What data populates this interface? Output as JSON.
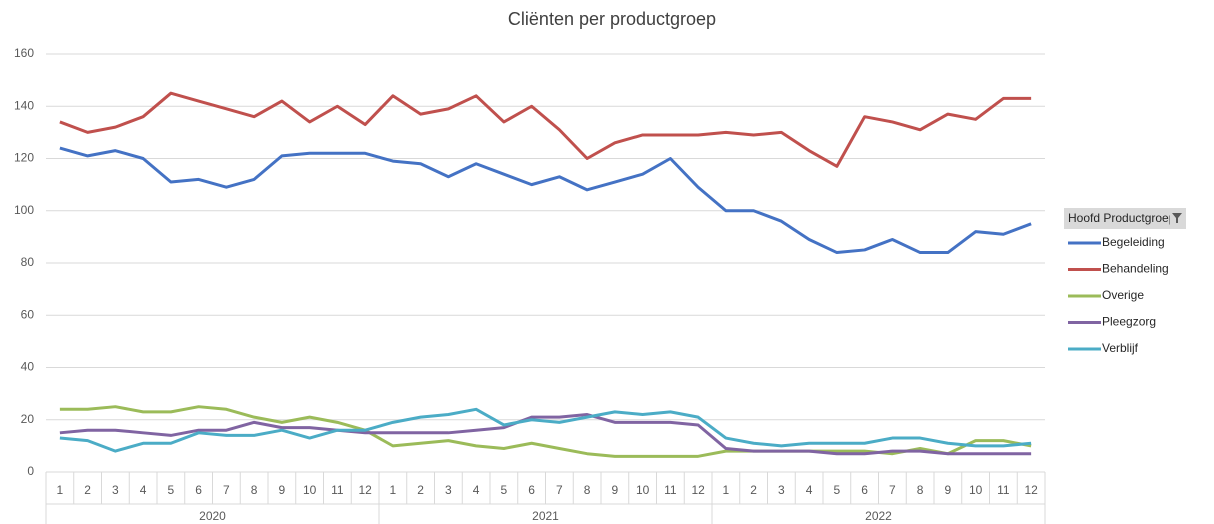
{
  "chart_data": {
    "type": "line",
    "title": "Cliënten per productgroep",
    "categories": [
      "1",
      "2",
      "3",
      "4",
      "5",
      "6",
      "7",
      "8",
      "9",
      "10",
      "11",
      "12",
      "1",
      "2",
      "3",
      "4",
      "5",
      "6",
      "7",
      "8",
      "9",
      "10",
      "11",
      "12",
      "1",
      "2",
      "3",
      "4",
      "5",
      "6",
      "7",
      "8",
      "9",
      "10",
      "11",
      "12"
    ],
    "year_groups": [
      "2020",
      "2021",
      "2022"
    ],
    "ylim": [
      0,
      160
    ],
    "yticks": [
      0,
      20,
      40,
      60,
      80,
      100,
      120,
      140,
      160
    ],
    "grid": true,
    "legend_title": "Hoofd Productgroep",
    "legend_position": "right",
    "series": [
      {
        "name": "Begeleiding",
        "color": "#4472c4",
        "values": [
          124,
          121,
          123,
          120,
          111,
          112,
          109,
          112,
          121,
          122,
          122,
          122,
          119,
          118,
          113,
          118,
          114,
          110,
          113,
          108,
          111,
          114,
          120,
          109,
          100,
          100,
          96,
          89,
          84,
          85,
          89,
          84,
          84,
          92,
          91,
          95
        ]
      },
      {
        "name": "Behandeling",
        "color": "#c0504d",
        "values": [
          134,
          130,
          132,
          136,
          145,
          142,
          139,
          136,
          142,
          134,
          140,
          133,
          144,
          137,
          139,
          144,
          134,
          140,
          131,
          120,
          126,
          129,
          129,
          129,
          130,
          129,
          130,
          123,
          117,
          136,
          134,
          131,
          137,
          135,
          143,
          143
        ]
      },
      {
        "name": "Overige",
        "color": "#9bbb59",
        "values": [
          24,
          24,
          25,
          23,
          23,
          25,
          24,
          21,
          19,
          21,
          19,
          16,
          10,
          11,
          12,
          10,
          9,
          11,
          9,
          7,
          6,
          6,
          6,
          6,
          8,
          8,
          8,
          8,
          8,
          8,
          7,
          9,
          7,
          12,
          12,
          10
        ]
      },
      {
        "name": "Pleegzorg",
        "color": "#8064a2",
        "values": [
          15,
          16,
          16,
          15,
          14,
          16,
          16,
          19,
          17,
          17,
          16,
          15,
          15,
          15,
          15,
          16,
          17,
          21,
          21,
          22,
          19,
          19,
          19,
          18,
          9,
          8,
          8,
          8,
          7,
          7,
          8,
          8,
          7,
          7,
          7,
          7
        ]
      },
      {
        "name": "Verblijf",
        "color": "#4bacc6",
        "values": [
          13,
          12,
          8,
          11,
          11,
          15,
          14,
          14,
          16,
          13,
          16,
          16,
          19,
          21,
          22,
          24,
          18,
          20,
          19,
          21,
          23,
          22,
          23,
          21,
          13,
          11,
          10,
          11,
          11,
          11,
          13,
          13,
          11,
          10,
          10,
          11
        ]
      }
    ]
  }
}
